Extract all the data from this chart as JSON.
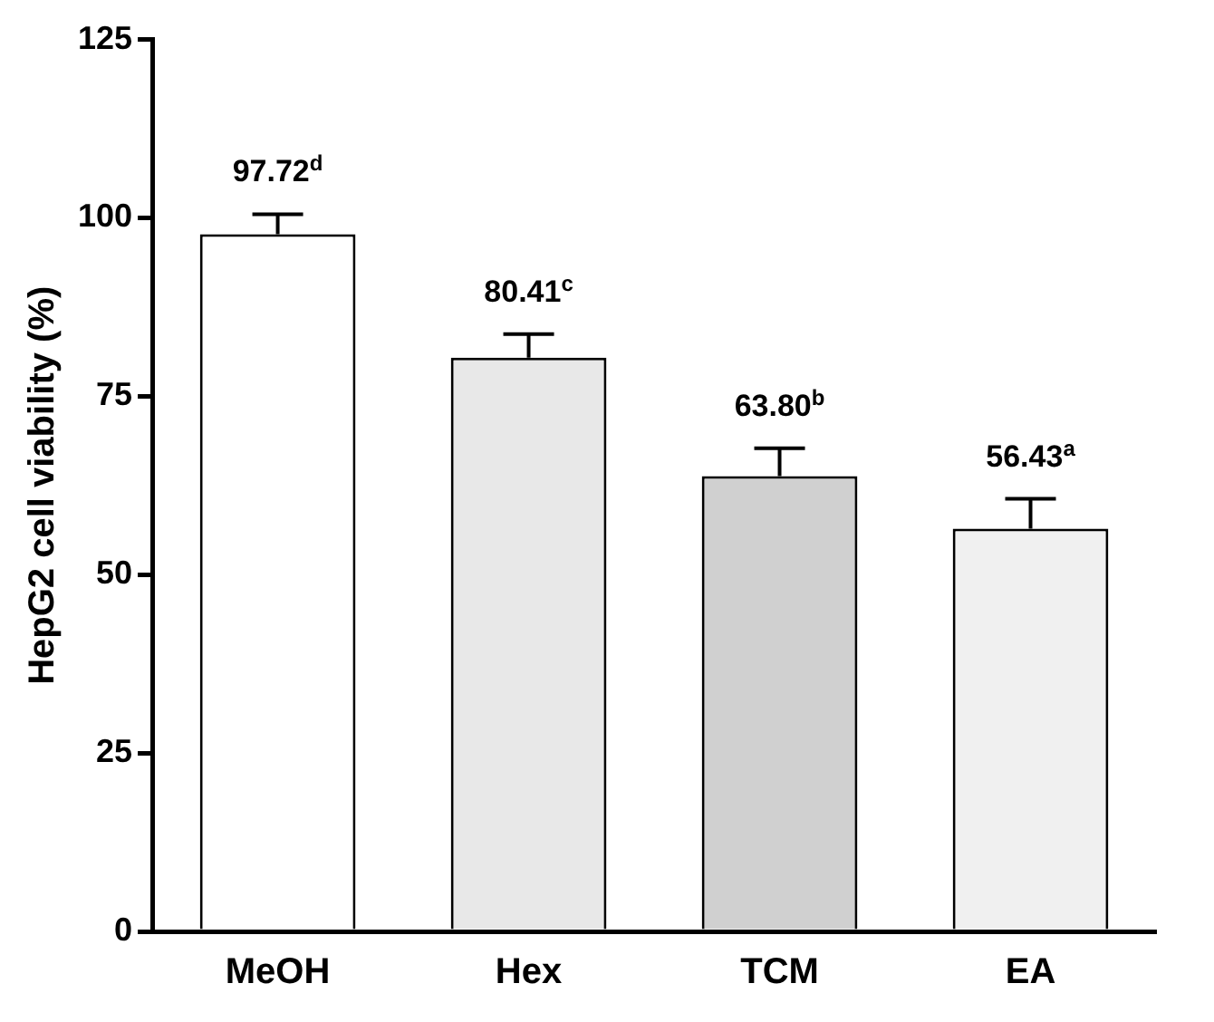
{
  "chart_data": {
    "type": "bar",
    "ylabel": "HepG2 cell viability (%)",
    "categories": [
      "MeOH",
      "Hex",
      "TCM",
      "EA"
    ],
    "values": [
      97.72,
      80.41,
      63.8,
      56.43
    ],
    "colors": [
      "#ffffff",
      "#e8e8e8",
      "#d0d0d0",
      "#f0f0f0"
    ],
    "errors": [
      2.8,
      3.3,
      3.9,
      4.2
    ],
    "value_labels": [
      "97.72$^{d}$",
      "80.41$^{c}$",
      "63.80$^{b}$",
      "56.43$^{a}$"
    ],
    "ylim": [
      0,
      125
    ],
    "yticks": [
      0,
      25,
      50,
      75,
      100,
      125
    ],
    "grid": false,
    "legend": false
  }
}
